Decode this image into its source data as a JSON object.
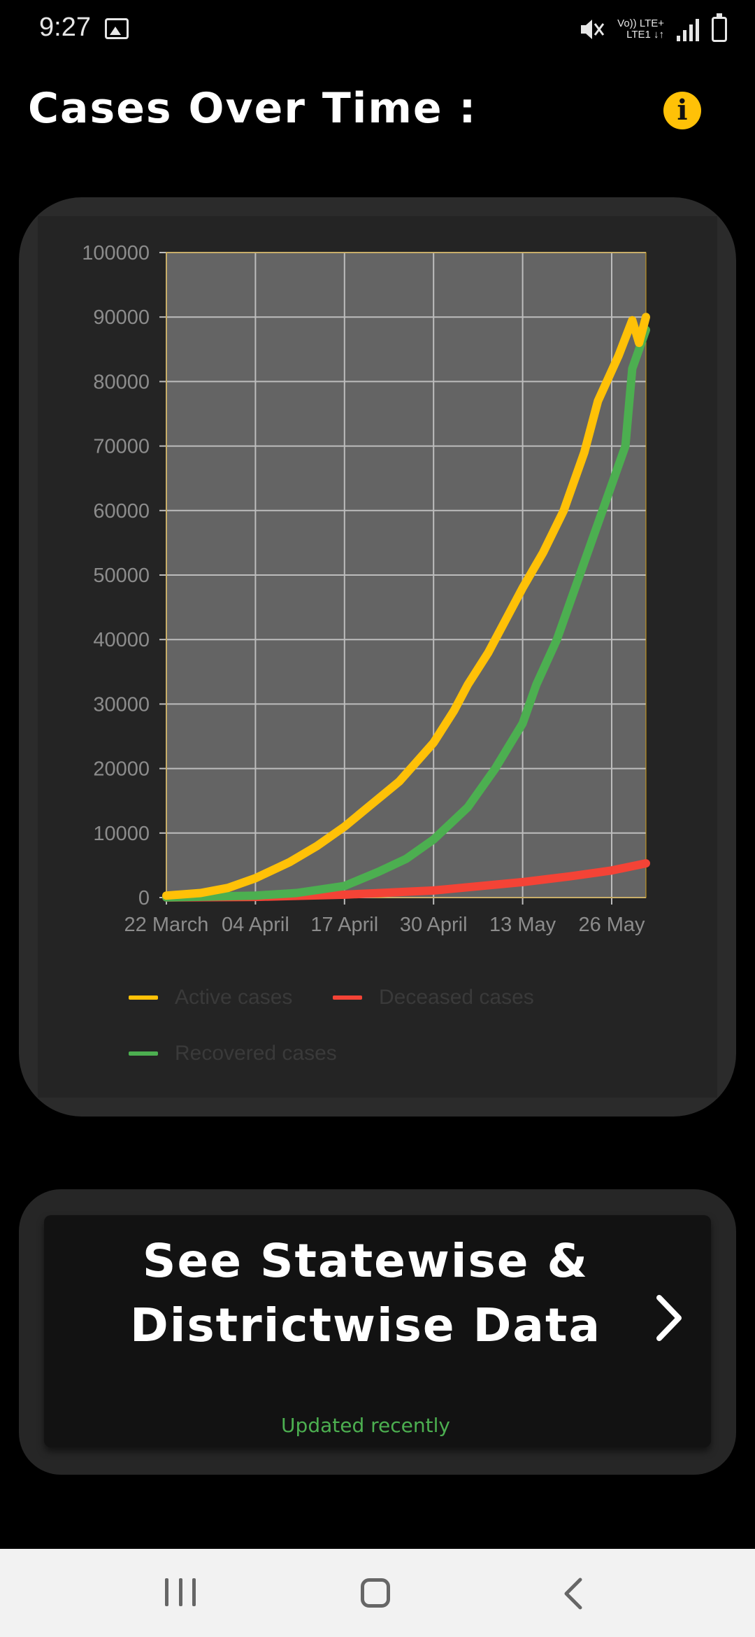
{
  "status_bar": {
    "time": "9:27",
    "network_line1": "Vo)) LTE+",
    "network_line2": "LTE1 ↓↑",
    "photo_icon": "image-icon",
    "mute_icon": "mute-icon",
    "signal_icon": "signal-icon",
    "battery_icon": "battery-charging-icon"
  },
  "header": {
    "title": "Cases Over Time :",
    "info_glyph": "i",
    "info_icon": "info-icon"
  },
  "colors": {
    "active": "#ffc107",
    "deceased": "#f44336",
    "recovered": "#4caf50",
    "plot_bg": "#646464",
    "grid": "#bdbdbd",
    "axis_text": "#8c8c8c",
    "accent_green": "#4caf50"
  },
  "chart_data": {
    "type": "line",
    "title": "",
    "xlabel": "",
    "ylabel": "",
    "x_axis": "date",
    "x_range": [
      "2020-03-22",
      "2020-05-31"
    ],
    "x_tick_labels": [
      {
        "date": "2020-03-22",
        "label": "22 March"
      },
      {
        "date": "2020-04-04",
        "label": "04 April"
      },
      {
        "date": "2020-04-17",
        "label": "17 April"
      },
      {
        "date": "2020-04-30",
        "label": "30 April"
      },
      {
        "date": "2020-05-13",
        "label": "13 May"
      },
      {
        "date": "2020-05-26",
        "label": "26 May"
      }
    ],
    "ylim": [
      0,
      100000
    ],
    "y_ticks": [
      0,
      10000,
      20000,
      30000,
      40000,
      50000,
      60000,
      70000,
      80000,
      90000,
      100000
    ],
    "grid": true,
    "legend_position": "bottom",
    "series": [
      {
        "name": "Active cases",
        "color": "#ffc107",
        "points": [
          [
            "2020-03-22",
            300
          ],
          [
            "2020-03-27",
            700
          ],
          [
            "2020-03-31",
            1500
          ],
          [
            "2020-04-04",
            3000
          ],
          [
            "2020-04-09",
            5500
          ],
          [
            "2020-04-13",
            8000
          ],
          [
            "2020-04-17",
            11000
          ],
          [
            "2020-04-21",
            14500
          ],
          [
            "2020-04-25",
            18000
          ],
          [
            "2020-04-30",
            24000
          ],
          [
            "2020-05-03",
            29000
          ],
          [
            "2020-05-05",
            33000
          ],
          [
            "2020-05-08",
            38000
          ],
          [
            "2020-05-11",
            44000
          ],
          [
            "2020-05-13",
            48000
          ],
          [
            "2020-05-16",
            53500
          ],
          [
            "2020-05-19",
            60000
          ],
          [
            "2020-05-22",
            69000
          ],
          [
            "2020-05-24",
            77000
          ],
          [
            "2020-05-27",
            84000
          ],
          [
            "2020-05-29",
            89500
          ],
          [
            "2020-05-30",
            86000
          ],
          [
            "2020-05-31",
            90000
          ]
        ]
      },
      {
        "name": "Deceased cases",
        "color": "#f44336",
        "points": [
          [
            "2020-03-22",
            10
          ],
          [
            "2020-04-04",
            100
          ],
          [
            "2020-04-17",
            450
          ],
          [
            "2020-04-30",
            1100
          ],
          [
            "2020-05-13",
            2400
          ],
          [
            "2020-05-20",
            3300
          ],
          [
            "2020-05-26",
            4200
          ],
          [
            "2020-05-31",
            5300
          ]
        ]
      },
      {
        "name": "Recovered cases",
        "color": "#4caf50",
        "points": [
          [
            "2020-03-22",
            20
          ],
          [
            "2020-04-04",
            300
          ],
          [
            "2020-04-10",
            700
          ],
          [
            "2020-04-17",
            1800
          ],
          [
            "2020-04-22",
            4000
          ],
          [
            "2020-04-26",
            6000
          ],
          [
            "2020-04-30",
            9000
          ],
          [
            "2020-05-05",
            14000
          ],
          [
            "2020-05-09",
            20000
          ],
          [
            "2020-05-13",
            27000
          ],
          [
            "2020-05-15",
            33000
          ],
          [
            "2020-05-18",
            40000
          ],
          [
            "2020-05-21",
            49000
          ],
          [
            "2020-05-24",
            58000
          ],
          [
            "2020-05-28",
            70000
          ],
          [
            "2020-05-29",
            82000
          ],
          [
            "2020-05-31",
            88000
          ]
        ]
      }
    ]
  },
  "navigation_card": {
    "title": "See Statewise & Districtwise Data",
    "subtitle": "Updated recently",
    "chevron_icon": "chevron-right-icon"
  },
  "system_nav": {
    "recent_icon": "recent-apps-icon",
    "home_icon": "home-icon",
    "back_icon": "back-icon"
  }
}
